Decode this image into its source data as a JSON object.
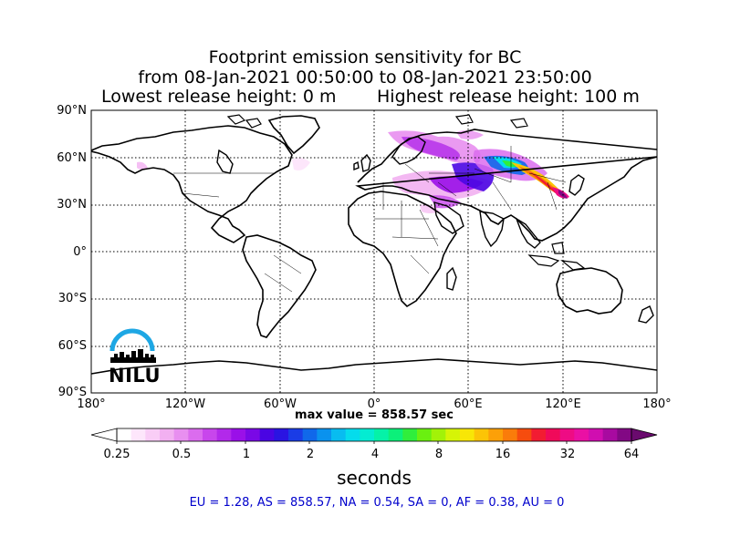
{
  "title": {
    "line1": "Footprint emission sensitivity for BC",
    "line2": "from 08-Jan-2021 00:50:00 to 08-Jan-2021 23:50:00",
    "lowest_release": "Lowest release height: 0 m",
    "highest_release": "Highest release height: 100 m"
  },
  "map": {
    "lat_ticks": [
      "90°N",
      "60°N",
      "30°N",
      "0°",
      "30°S",
      "60°S",
      "90°S"
    ],
    "lon_ticks": [
      "180°",
      "120°W",
      "60°W",
      "0°",
      "60°E",
      "120°E",
      "180°"
    ],
    "grid": true,
    "coast_color": "#000000",
    "border_color": "#000000"
  },
  "max_value": "max value = 858.57 sec",
  "colorbar": {
    "tick_labels": [
      "0.25",
      "0.5",
      "1",
      "2",
      "4",
      "8",
      "16",
      "32",
      "64"
    ],
    "units": "seconds",
    "colors": [
      "#ffffff",
      "#fde6fb",
      "#f9cdf6",
      "#f2b0f1",
      "#e88ff0",
      "#db6cee",
      "#c846ec",
      "#b229ea",
      "#9a10e8",
      "#7a08e6",
      "#4a05e3",
      "#2a14e2",
      "#1a3ce6",
      "#1068ea",
      "#0a92ee",
      "#08bcf0",
      "#05dcec",
      "#04ecd2",
      "#05f2a8",
      "#0cf07a",
      "#30ee3c",
      "#6af010",
      "#a2f208",
      "#d6f406",
      "#f8e606",
      "#fcc406",
      "#fca008",
      "#fa7c0a",
      "#f64c0e",
      "#f21c32",
      "#f00a5a",
      "#ee0c84",
      "#ea10a4",
      "#d00eb0",
      "#a80aa0",
      "#820884"
    ]
  },
  "logo": {
    "text": "NILU",
    "arc_color": "#1ea7e4"
  },
  "summary": "EU = 1.28,  AS = 858.57,  NA = 0.54,  SA = 0,  AF = 0.38,  AU = 0",
  "footprint": {
    "region": "Northern and Central Asia / Eastern Europe",
    "max_seconds": 858.57
  }
}
